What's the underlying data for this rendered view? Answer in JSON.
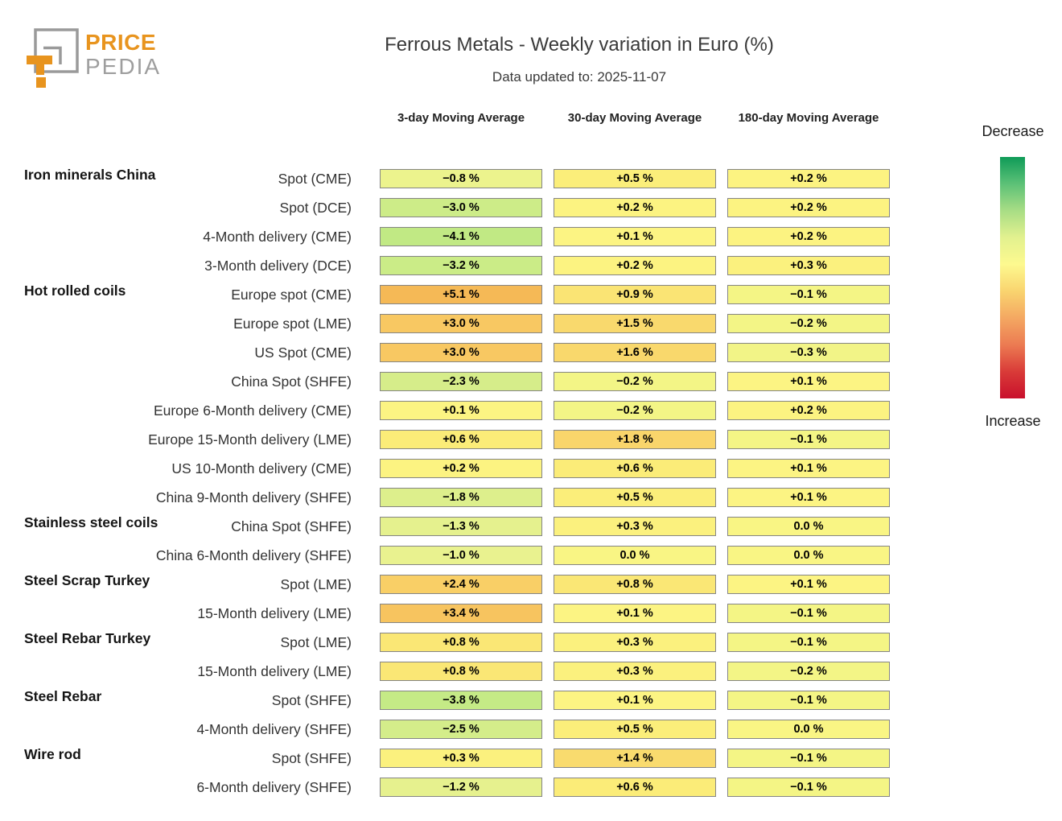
{
  "brand": {
    "name_top": "PRICE",
    "name_bottom": "PEDIA",
    "orange": "#E8941E",
    "gray": "#9E9E9E"
  },
  "legend": {
    "top_label": "Decrease",
    "bottom_label": "Increase",
    "gradient": [
      "#0f9b58",
      "#5cc177",
      "#a8dd85",
      "#e2f18f",
      "#fdf98f",
      "#f9d46f",
      "#f4a862",
      "#ec7b52",
      "#d93b38",
      "#c9102c"
    ]
  },
  "chart_data": {
    "type": "heatmap",
    "title": "Ferrous Metals - Weekly variation in Euro (%)",
    "subtitle": "Data updated to: 2025-11-07",
    "unit": "%",
    "columns": [
      "3-day Moving Average",
      "30-day Moving Average",
      "180-day Moving Average"
    ],
    "color_scale": {
      "description": "green = decrease, yellow = near zero, orange/red = increase",
      "anchors": [
        [
          -10,
          "#1a9850"
        ],
        [
          -6,
          "#9bd977"
        ],
        [
          -4,
          "#c3ea85"
        ],
        [
          -3,
          "#cdec88"
        ],
        [
          -2,
          "#daee8b"
        ],
        [
          -1,
          "#e9f28f"
        ],
        [
          -0.05,
          "#f5f584"
        ],
        [
          0.05,
          "#fcf584"
        ],
        [
          0.5,
          "#fbee7a"
        ],
        [
          1,
          "#fae272"
        ],
        [
          1.5,
          "#f9d96d"
        ],
        [
          2,
          "#f9d369"
        ],
        [
          3,
          "#f8c862"
        ],
        [
          4,
          "#f6bf5b"
        ],
        [
          5.5,
          "#f4b754"
        ],
        [
          8,
          "#ef9a45"
        ],
        [
          10,
          "#d94a35"
        ]
      ]
    },
    "rows": [
      {
        "group": "Iron minerals China",
        "label": "Spot (CME)",
        "values": [
          -0.8,
          0.5,
          0.2
        ],
        "display": [
          "−0.8 %",
          "+0.5 %",
          "+0.2 %"
        ]
      },
      {
        "group": "",
        "label": "Spot (DCE)",
        "values": [
          -3.0,
          0.2,
          0.2
        ],
        "display": [
          "−3.0 %",
          "+0.2 %",
          "+0.2 %"
        ]
      },
      {
        "group": "",
        "label": "4-Month delivery (CME)",
        "values": [
          -4.1,
          0.1,
          0.2
        ],
        "display": [
          "−4.1 %",
          "+0.1 %",
          "+0.2 %"
        ]
      },
      {
        "group": "",
        "label": "3-Month delivery (DCE)",
        "values": [
          -3.2,
          0.2,
          0.3
        ],
        "display": [
          "−3.2 %",
          "+0.2 %",
          "+0.3 %"
        ]
      },
      {
        "group": "Hot rolled coils",
        "label": "Europe spot (CME)",
        "values": [
          5.1,
          0.9,
          -0.1
        ],
        "display": [
          "+5.1 %",
          "+0.9 %",
          "−0.1 %"
        ]
      },
      {
        "group": "",
        "label": "Europe spot (LME)",
        "values": [
          3.0,
          1.5,
          -0.2
        ],
        "display": [
          "+3.0 %",
          "+1.5 %",
          "−0.2 %"
        ]
      },
      {
        "group": "",
        "label": "US Spot (CME)",
        "values": [
          3.0,
          1.6,
          -0.3
        ],
        "display": [
          "+3.0 %",
          "+1.6 %",
          "−0.3 %"
        ]
      },
      {
        "group": "",
        "label": "China Spot (SHFE)",
        "values": [
          -2.3,
          -0.2,
          0.1
        ],
        "display": [
          "−2.3 %",
          "−0.2 %",
          "+0.1 %"
        ]
      },
      {
        "group": "",
        "label": "Europe 6-Month delivery (CME)",
        "values": [
          0.1,
          -0.2,
          0.2
        ],
        "display": [
          "+0.1 %",
          "−0.2 %",
          "+0.2 %"
        ]
      },
      {
        "group": "",
        "label": "Europe 15-Month delivery (LME)",
        "values": [
          0.6,
          1.8,
          -0.1
        ],
        "display": [
          "+0.6 %",
          "+1.8 %",
          "−0.1 %"
        ]
      },
      {
        "group": "",
        "label": "US 10-Month delivery (CME)",
        "values": [
          0.2,
          0.6,
          0.1
        ],
        "display": [
          "+0.2 %",
          "+0.6 %",
          "+0.1 %"
        ]
      },
      {
        "group": "",
        "label": "China 9-Month delivery (SHFE)",
        "values": [
          -1.8,
          0.5,
          0.1
        ],
        "display": [
          "−1.8 %",
          "+0.5 %",
          "+0.1 %"
        ]
      },
      {
        "group": "Stainless steel coils",
        "label": "China Spot (SHFE)",
        "values": [
          -1.3,
          0.3,
          0.0
        ],
        "display": [
          "−1.3 %",
          "+0.3 %",
          "0.0 %"
        ]
      },
      {
        "group": "",
        "label": "China 6-Month delivery (SHFE)",
        "values": [
          -1.0,
          0.0,
          0.0
        ],
        "display": [
          "−1.0 %",
          "0.0 %",
          "0.0 %"
        ]
      },
      {
        "group": "Steel Scrap Turkey",
        "label": "Spot (LME)",
        "values": [
          2.4,
          0.8,
          0.1
        ],
        "display": [
          "+2.4 %",
          "+0.8 %",
          "+0.1 %"
        ]
      },
      {
        "group": "",
        "label": "15-Month delivery (LME)",
        "values": [
          3.4,
          0.1,
          -0.1
        ],
        "display": [
          "+3.4 %",
          "+0.1 %",
          "−0.1 %"
        ]
      },
      {
        "group": "Steel Rebar Turkey",
        "label": "Spot (LME)",
        "values": [
          0.8,
          0.3,
          -0.1
        ],
        "display": [
          "+0.8 %",
          "+0.3 %",
          "−0.1 %"
        ]
      },
      {
        "group": "",
        "label": "15-Month delivery (LME)",
        "values": [
          0.8,
          0.3,
          -0.2
        ],
        "display": [
          "+0.8 %",
          "+0.3 %",
          "−0.2 %"
        ]
      },
      {
        "group": "Steel Rebar",
        "label": "Spot (SHFE)",
        "values": [
          -3.8,
          0.1,
          -0.1
        ],
        "display": [
          "−3.8 %",
          "+0.1 %",
          "−0.1 %"
        ]
      },
      {
        "group": "",
        "label": "4-Month delivery (SHFE)",
        "values": [
          -2.5,
          0.5,
          0.0
        ],
        "display": [
          "−2.5 %",
          "+0.5 %",
          "0.0 %"
        ]
      },
      {
        "group": "Wire rod",
        "label": "Spot (SHFE)",
        "values": [
          0.3,
          1.4,
          -0.1
        ],
        "display": [
          "+0.3 %",
          "+1.4 %",
          "−0.1 %"
        ]
      },
      {
        "group": "",
        "label": "6-Month delivery (SHFE)",
        "values": [
          -1.2,
          0.6,
          -0.1
        ],
        "display": [
          "−1.2 %",
          "+0.6 %",
          "−0.1 %"
        ]
      }
    ]
  }
}
